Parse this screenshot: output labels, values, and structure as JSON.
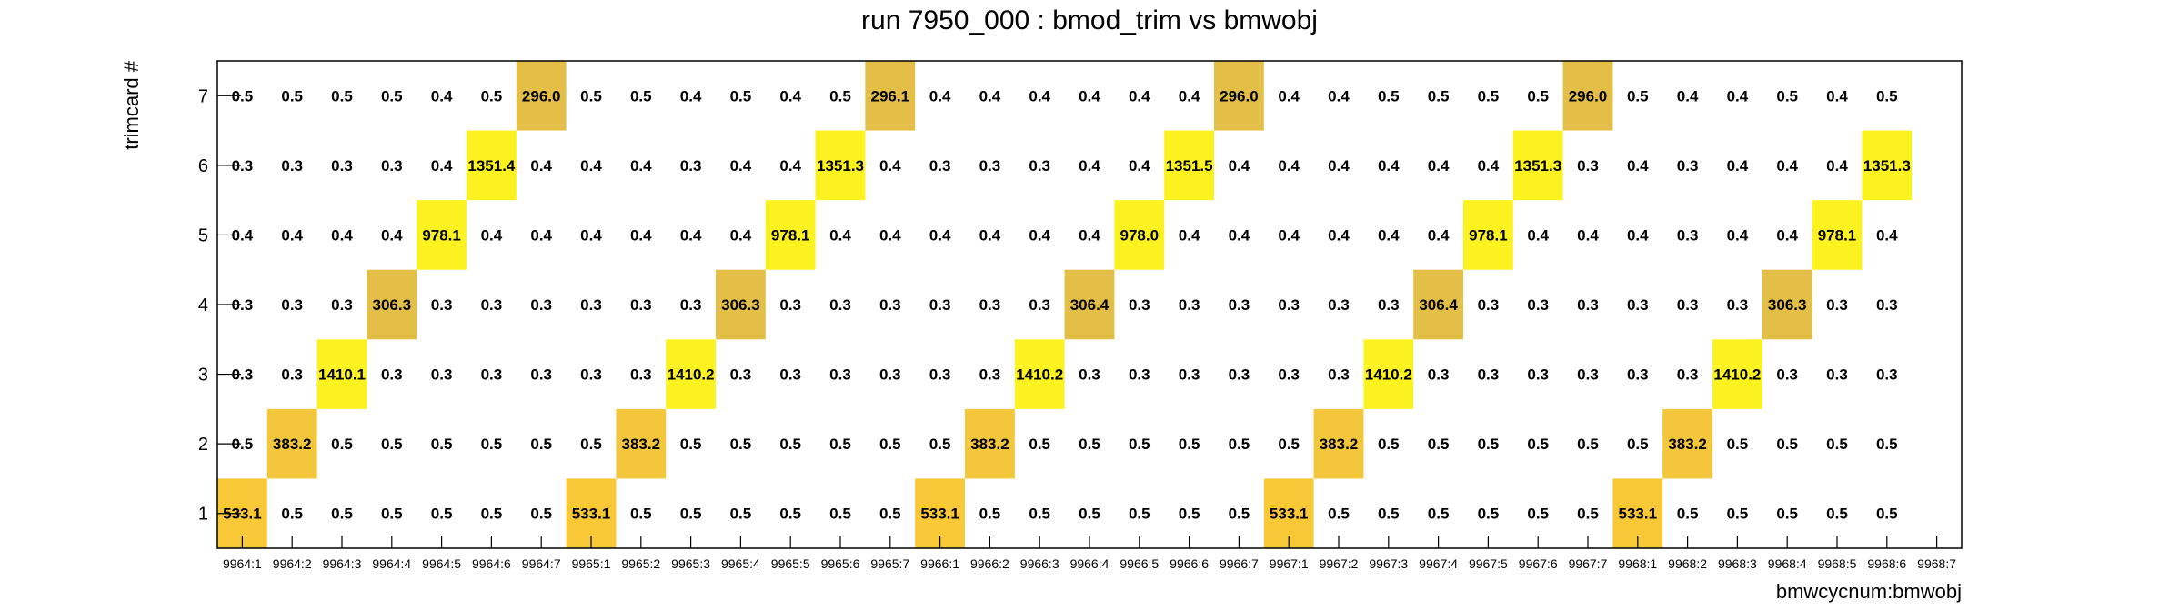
{
  "chart_data": {
    "type": "heatmap",
    "title": "run 7950_000 : bmod_trim vs bmwobj",
    "xlabel": "bmwcycnum:bmwobj",
    "ylabel": "trimcard #",
    "x_categories": [
      "9964:1",
      "9964:2",
      "9964:3",
      "9964:4",
      "9964:5",
      "9964:6",
      "9964:7",
      "9965:1",
      "9965:2",
      "9965:3",
      "9965:4",
      "9965:5",
      "9965:6",
      "9965:7",
      "9966:1",
      "9966:2",
      "9966:3",
      "9966:4",
      "9966:5",
      "9966:6",
      "9966:7",
      "9967:1",
      "9967:2",
      "9967:3",
      "9967:4",
      "9967:5",
      "9967:6",
      "9967:7",
      "9968:1",
      "9968:2",
      "9968:3",
      "9968:4",
      "9968:5",
      "9968:6",
      "9968:7"
    ],
    "y_categories": [
      "1",
      "2",
      "3",
      "4",
      "5",
      "6",
      "7"
    ],
    "values": [
      [
        "533.1",
        "0.5",
        "0.5",
        "0.5",
        "0.5",
        "0.5",
        "0.5",
        "533.1",
        "0.5",
        "0.5",
        "0.5",
        "0.5",
        "0.5",
        "0.5",
        "533.1",
        "0.5",
        "0.5",
        "0.5",
        "0.5",
        "0.5",
        "0.5",
        "533.1",
        "0.5",
        "0.5",
        "0.5",
        "0.5",
        "0.5",
        "0.5",
        "533.1",
        "0.5",
        "0.5",
        "0.5",
        "0.5",
        "0.5",
        null
      ],
      [
        "0.5",
        "383.2",
        "0.5",
        "0.5",
        "0.5",
        "0.5",
        "0.5",
        "0.5",
        "383.2",
        "0.5",
        "0.5",
        "0.5",
        "0.5",
        "0.5",
        "0.5",
        "383.2",
        "0.5",
        "0.5",
        "0.5",
        "0.5",
        "0.5",
        "0.5",
        "383.2",
        "0.5",
        "0.5",
        "0.5",
        "0.5",
        "0.5",
        "0.5",
        "383.2",
        "0.5",
        "0.5",
        "0.5",
        "0.5",
        null
      ],
      [
        "0.3",
        "0.3",
        "1410.1",
        "0.3",
        "0.3",
        "0.3",
        "0.3",
        "0.3",
        "0.3",
        "1410.2",
        "0.3",
        "0.3",
        "0.3",
        "0.3",
        "0.3",
        "0.3",
        "1410.2",
        "0.3",
        "0.3",
        "0.3",
        "0.3",
        "0.3",
        "0.3",
        "1410.2",
        "0.3",
        "0.3",
        "0.3",
        "0.3",
        "0.3",
        "0.3",
        "1410.2",
        "0.3",
        "0.3",
        "0.3",
        null
      ],
      [
        "0.3",
        "0.3",
        "0.3",
        "306.3",
        "0.3",
        "0.3",
        "0.3",
        "0.3",
        "0.3",
        "0.3",
        "306.3",
        "0.3",
        "0.3",
        "0.3",
        "0.3",
        "0.3",
        "0.3",
        "306.4",
        "0.3",
        "0.3",
        "0.3",
        "0.3",
        "0.3",
        "0.3",
        "306.4",
        "0.3",
        "0.3",
        "0.3",
        "0.3",
        "0.3",
        "0.3",
        "306.3",
        "0.3",
        "0.3",
        null
      ],
      [
        "0.4",
        "0.4",
        "0.4",
        "0.4",
        "978.1",
        "0.4",
        "0.4",
        "0.4",
        "0.4",
        "0.4",
        "0.4",
        "978.1",
        "0.4",
        "0.4",
        "0.4",
        "0.4",
        "0.4",
        "0.4",
        "978.0",
        "0.4",
        "0.4",
        "0.4",
        "0.4",
        "0.4",
        "0.4",
        "978.1",
        "0.4",
        "0.4",
        "0.4",
        "0.3",
        "0.4",
        "0.4",
        "978.1",
        "0.4",
        null
      ],
      [
        "0.3",
        "0.3",
        "0.3",
        "0.3",
        "0.4",
        "1351.4",
        "0.4",
        "0.4",
        "0.4",
        "0.3",
        "0.4",
        "0.4",
        "1351.3",
        "0.4",
        "0.3",
        "0.3",
        "0.3",
        "0.4",
        "0.4",
        "1351.5",
        "0.4",
        "0.4",
        "0.4",
        "0.4",
        "0.4",
        "0.4",
        "1351.3",
        "0.3",
        "0.4",
        "0.3",
        "0.4",
        "0.4",
        "0.4",
        "1351.3",
        null
      ],
      [
        "0.5",
        "0.5",
        "0.5",
        "0.5",
        "0.4",
        "0.5",
        "296.0",
        "0.5",
        "0.5",
        "0.4",
        "0.5",
        "0.4",
        "0.5",
        "296.1",
        "0.4",
        "0.4",
        "0.4",
        "0.4",
        "0.4",
        "0.4",
        "296.0",
        "0.4",
        "0.4",
        "0.5",
        "0.5",
        "0.5",
        "0.5",
        "296.0",
        "0.5",
        "0.4",
        "0.4",
        "0.5",
        "0.4",
        "0.5",
        null
      ]
    ],
    "color_map": {
      "low": "#ffffff",
      "296.0": "#e3bf47",
      "296.1": "#e3bf47",
      "306.3": "#e3bf47",
      "306.4": "#e3bf47",
      "383.2": "#f3c63c",
      "533.1": "#f8c836",
      "978.0": "#fcf21f",
      "978.1": "#fcf21f",
      "1351.3": "#fcf21f",
      "1351.4": "#fcf21f",
      "1351.5": "#fcf21f",
      "1410.1": "#fcf21f",
      "1410.2": "#fcf21f"
    },
    "grid": false,
    "legend": "none"
  }
}
